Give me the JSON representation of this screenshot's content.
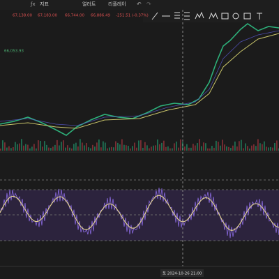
{
  "toolbar": {
    "indicators": "지표",
    "alerts": "얼러트",
    "replay": "리플레이"
  },
  "ohlc": {
    "open": "67,138.00",
    "high": "67,183.00",
    "low": "66,744.00",
    "close": "66,886.49",
    "change": "-251.51 (-0.37%)"
  },
  "ma_label": "66,053.93",
  "crosshair_time": "토 2024-10-26  21:00"
}
